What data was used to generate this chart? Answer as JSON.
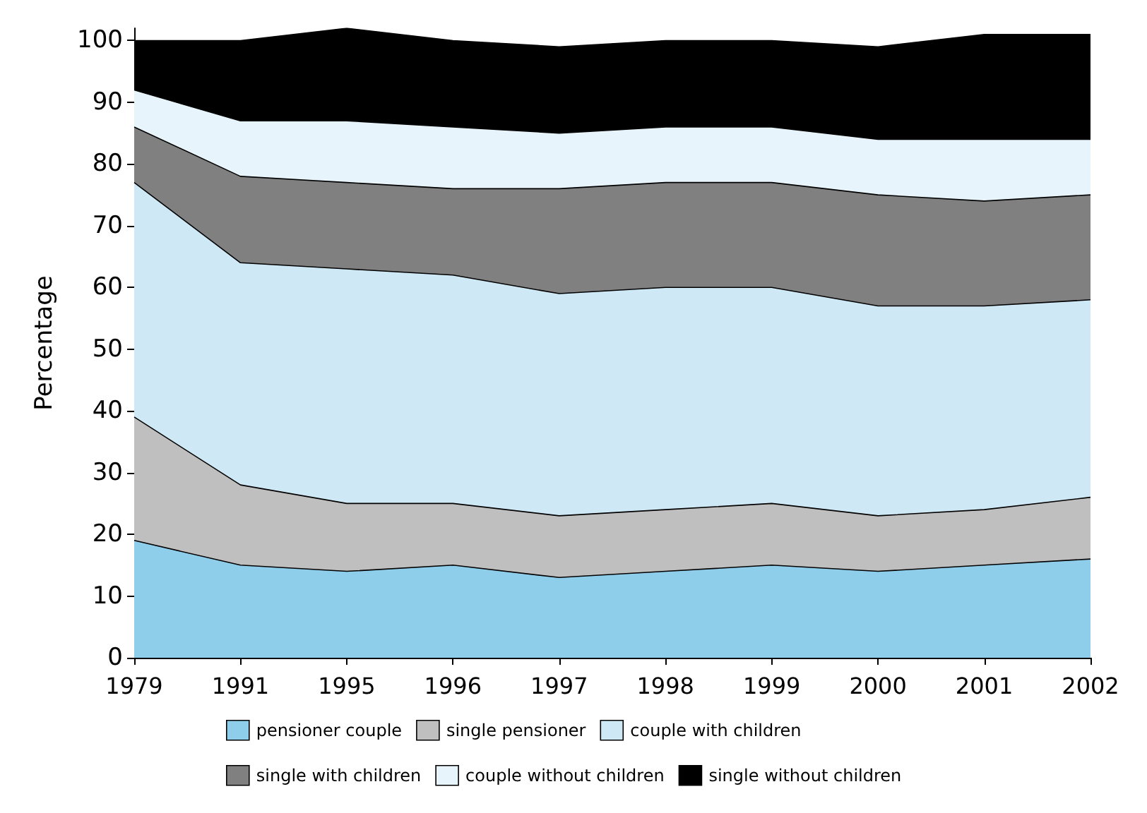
{
  "chart_data": {
    "type": "area",
    "stacked": true,
    "ylabel": "Percentage",
    "categories": [
      "1979",
      "1991",
      "1995",
      "1996",
      "1997",
      "1998",
      "1999",
      "2000",
      "2001",
      "2002"
    ],
    "ylim": [
      0,
      102
    ],
    "yticks": [
      0,
      10,
      20,
      30,
      40,
      50,
      60,
      70,
      80,
      90,
      100
    ],
    "grid": false,
    "legend": "bottom",
    "series": [
      {
        "name": "pensioner couple",
        "color": "#8fceeb",
        "values": [
          19,
          15,
          14,
          15,
          13,
          14,
          15,
          14,
          15,
          16
        ]
      },
      {
        "name": "single pensioner",
        "color": "#bfbfbf",
        "values": [
          20,
          13,
          11,
          10,
          10,
          10,
          10,
          9,
          9,
          10
        ]
      },
      {
        "name": "couple with children",
        "color": "#cfe8f5",
        "values": [
          38,
          36,
          38,
          37,
          36,
          36,
          35,
          34,
          33,
          32
        ]
      },
      {
        "name": "single with children",
        "color": "#808080",
        "values": [
          9,
          14,
          14,
          14,
          17,
          17,
          17,
          18,
          17,
          17
        ]
      },
      {
        "name": "couple without children",
        "color": "#e8f4fb",
        "values": [
          6,
          9,
          10,
          10,
          9,
          9,
          9,
          9,
          10,
          9
        ]
      },
      {
        "name": "single without children",
        "color": "#000000",
        "values": [
          8,
          13,
          15,
          14,
          14,
          14,
          14,
          15,
          17,
          17
        ]
      }
    ]
  }
}
